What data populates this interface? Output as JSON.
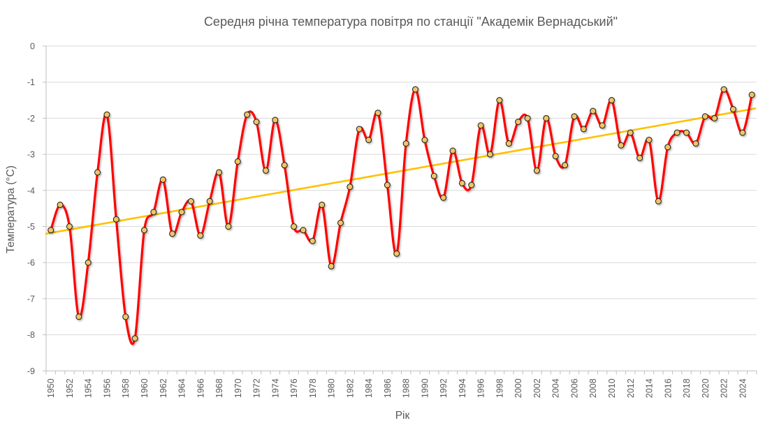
{
  "chart_data": {
    "type": "line",
    "title": "Середня річна температура повітря по станції \"Академік Вернадський\"",
    "xlabel": "Рік",
    "ylabel": "Температура (°C)",
    "ylim": [
      -9,
      0
    ],
    "xlim": [
      1950,
      2025
    ],
    "grid": "horizontal",
    "legend": "none",
    "y_ticks": [
      0,
      -1,
      -2,
      -3,
      -4,
      -5,
      -6,
      -7,
      -8,
      -9
    ],
    "x_tick_years": [
      1950,
      1952,
      1954,
      1956,
      1958,
      1960,
      1962,
      1964,
      1966,
      1968,
      1970,
      1972,
      1974,
      1976,
      1978,
      1980,
      1982,
      1984,
      1986,
      1988,
      1990,
      1992,
      1994,
      1996,
      1998,
      2000,
      2002,
      2004,
      2006,
      2008,
      2010,
      2012,
      2014,
      2016,
      2018,
      2020,
      2022,
      2024
    ],
    "series": [
      {
        "style": "smooth-line-with-markers",
        "line_color": "#FF0000",
        "marker_fill": "#F2C464",
        "marker_stroke": "#262626",
        "x": [
          1950,
          1951,
          1952,
          1953,
          1954,
          1955,
          1956,
          1957,
          1958,
          1959,
          1960,
          1961,
          1962,
          1963,
          1964,
          1965,
          1966,
          1967,
          1968,
          1969,
          1970,
          1971,
          1972,
          1973,
          1974,
          1975,
          1976,
          1977,
          1978,
          1979,
          1980,
          1981,
          1982,
          1983,
          1984,
          1985,
          1986,
          1987,
          1988,
          1989,
          1990,
          1991,
          1992,
          1993,
          1994,
          1995,
          1996,
          1997,
          1998,
          1999,
          2000,
          2001,
          2002,
          2003,
          2004,
          2005,
          2006,
          2007,
          2008,
          2009,
          2010,
          2011,
          2012,
          2013,
          2014,
          2015,
          2016,
          2017,
          2018,
          2019,
          2020,
          2021,
          2022,
          2023,
          2024,
          2025
        ],
        "values": [
          -5.1,
          -4.4,
          -5.0,
          -7.5,
          -6.0,
          -3.5,
          -1.9,
          -4.8,
          -7.5,
          -8.1,
          -5.1,
          -4.6,
          -3.7,
          -5.2,
          -4.6,
          -4.3,
          -5.25,
          -4.3,
          -3.5,
          -5.0,
          -3.2,
          -1.9,
          -2.1,
          -3.45,
          -2.05,
          -3.3,
          -5.0,
          -5.1,
          -5.4,
          -4.4,
          -6.1,
          -4.9,
          -3.9,
          -2.3,
          -2.6,
          -1.85,
          -3.85,
          -5.75,
          -2.7,
          -1.2,
          -2.6,
          -3.6,
          -4.2,
          -2.9,
          -3.8,
          -3.85,
          -2.2,
          -3.0,
          -1.5,
          -2.7,
          -2.1,
          -2.0,
          -3.45,
          -2.0,
          -3.05,
          -3.3,
          -1.95,
          -2.3,
          -1.8,
          -2.2,
          -1.5,
          -2.75,
          -2.4,
          -3.1,
          -2.6,
          -4.3,
          -2.8,
          -2.4,
          -2.4,
          -2.7,
          -1.95,
          -2.0,
          -1.2,
          -1.75,
          -2.4,
          -1.35
        ]
      }
    ],
    "trendline": {
      "kind": "linear",
      "color": "#FFC000",
      "start_value": -5.2,
      "end_value": -1.73
    }
  },
  "colors": {
    "background": "#FFFFFF",
    "gridline": "#D9D9D9",
    "axis_line": "#BFBFBF",
    "text": "#595959",
    "series_line": "#FF0000",
    "marker_fill": "#F2C464",
    "trend_line": "#FFC000"
  }
}
